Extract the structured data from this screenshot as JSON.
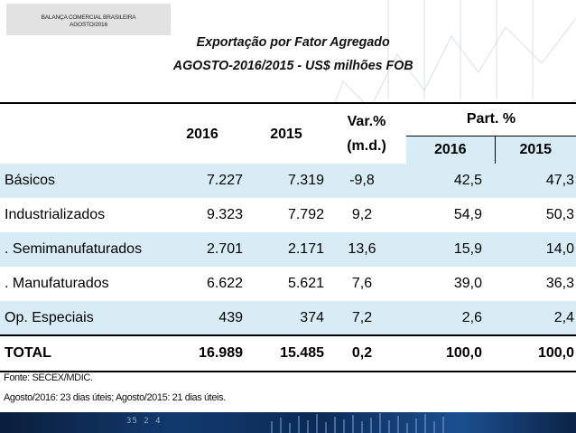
{
  "header": {
    "tag_line1": "BALANÇA COMERCIAL BRASILEIRA",
    "tag_line2": "AGOSTO/2016",
    "title": "Exportação por Fator Agregado",
    "subtitle": "AGOSTO-2016/2015 - US$ milhões FOB"
  },
  "table": {
    "columns": {
      "year1": "2016",
      "year2": "2015",
      "var_line1": "Var.%",
      "var_line2": "(m.d.)",
      "part": "Part. %",
      "part_year1": "2016",
      "part_year2": "2015"
    },
    "rows": [
      {
        "label": "Básicos",
        "v2016": "7.227",
        "v2015": "7.319",
        "var": "-9,8",
        "p2016": "42,5",
        "p2015": "47,3"
      },
      {
        "label": "Industrializados",
        "v2016": "9.323",
        "v2015": "7.792",
        "var": "9,2",
        "p2016": "54,9",
        "p2015": "50,3"
      },
      {
        "label": ". Semimanufaturados",
        "v2016": "2.701",
        "v2015": "2.171",
        "var": "13,6",
        "p2016": "15,9",
        "p2015": "14,0"
      },
      {
        "label": ". Manufaturados",
        "v2016": "6.622",
        "v2015": "5.621",
        "var": "7,6",
        "p2016": "39,0",
        "p2015": "36,3"
      },
      {
        "label": "Op. Especiais",
        "v2016": "439",
        "v2015": "374",
        "var": "7,2",
        "p2016": "2,6",
        "p2015": "2,4"
      }
    ],
    "total": {
      "label": "TOTAL",
      "v2016": "16.989",
      "v2015": "15.485",
      "var": "0,2",
      "p2016": "100,0",
      "p2015": "100,0"
    }
  },
  "footnotes": {
    "source": "Fonte: SECEX/MDIC.",
    "days": "Agosto/2016: 23 dias úteis; Agosto/2015: 21 dias úteis."
  },
  "footer": {
    "ticker_text": "35 2 4"
  },
  "colors": {
    "row_shade": "#d7ecf4",
    "tag_bg": "#e2e2e2",
    "footer_dark": "#0a1e3c"
  }
}
